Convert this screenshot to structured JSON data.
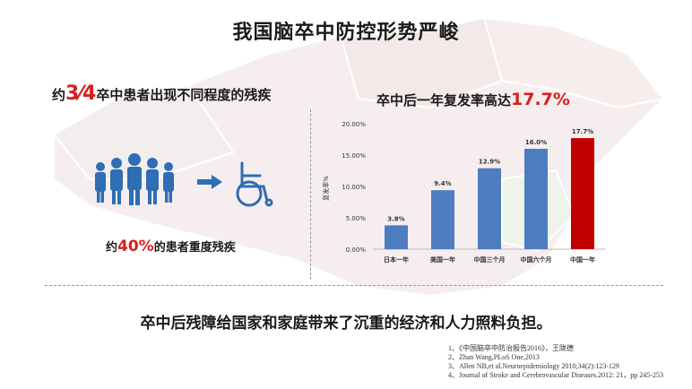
{
  "title": "我国脑卒中防控形势严峻",
  "left": {
    "prefix": "约",
    "fraction": "3⁄4",
    "suffix": "卒中患者出现不同程度的残疾",
    "severe_prefix": "约",
    "severe_percent": "40%",
    "severe_suffix": "的患者重度残疾"
  },
  "right": {
    "heading_text": "卒中后一年复发率高达",
    "heading_value": "17.7%"
  },
  "conclusion": "卒中后残障给国家和家庭带来了沉重的经济和人力照料负担。",
  "references": [
    "1、《中国脑卒中防治报告2016》，王陇德",
    "2、Zhan Wang,PLoS One,2013",
    "3、Allen NB,et al.Neuroepidemiology 2010;34(2):123-129",
    "4、Journal of Stroke and Cerebrovascular Diseases.2012: 21，pp 245-253"
  ],
  "colors": {
    "accent_red": "#d62020",
    "bar_blue": "#4e7dbf",
    "bar_red": "#c00000",
    "icon_blue": "#2f6db5"
  },
  "icons": [
    "people-group-icon",
    "arrow-right-icon",
    "wheelchair-icon"
  ],
  "chart_data": {
    "type": "bar",
    "categories": [
      "日本一年",
      "美国一年",
      "中国三个月",
      "中国六个月",
      "中国一年"
    ],
    "values": [
      3.8,
      9.4,
      12.9,
      16.0,
      17.7
    ],
    "data_labels": [
      "3.8%",
      "9.4%",
      "12.9%",
      "16.0%",
      "17.7%"
    ],
    "highlight_index": 4,
    "ylabel": "复发率%",
    "yticks": [
      "0.00%",
      "5.00%",
      "10.00%",
      "15.00%",
      "20.00%"
    ],
    "ylim": [
      0,
      20
    ],
    "grid": false,
    "legend": "none"
  }
}
